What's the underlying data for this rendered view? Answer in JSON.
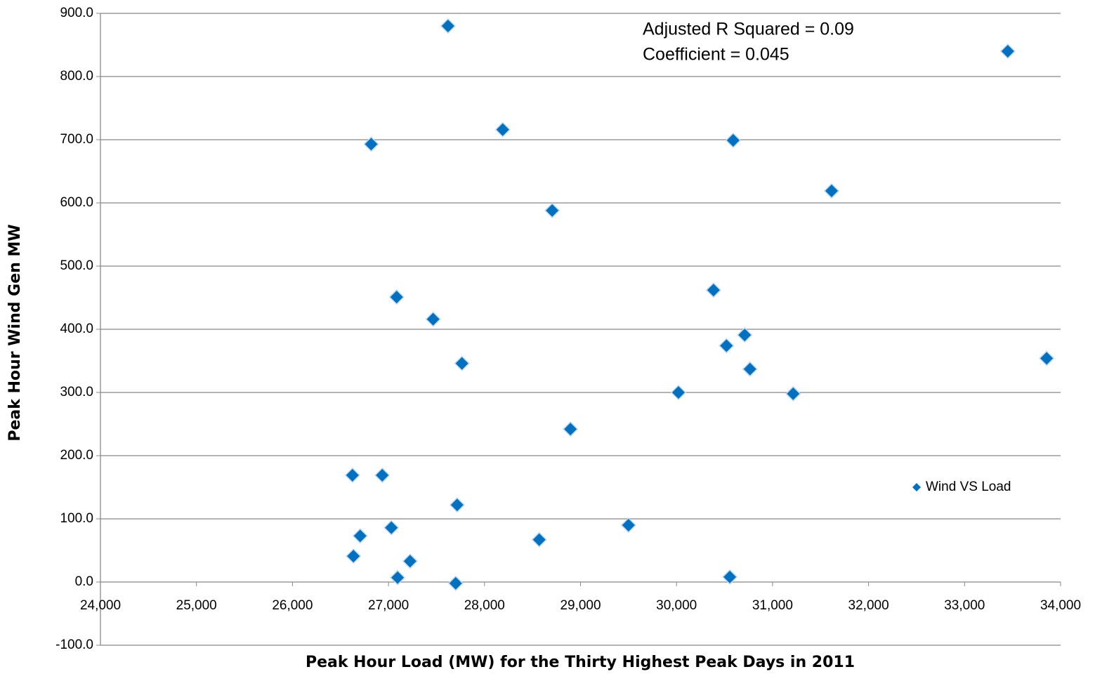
{
  "chart_data": {
    "type": "scatter",
    "x_label": "Peak Hour Load (MW) for the Thirty Highest Peak Days in 2011",
    "y_label": "Peak Hour Wind Gen MW",
    "annotations": [
      "Adjusted R Squared = 0.09",
      "Coefficient = 0.045"
    ],
    "legend": "right",
    "grid": true,
    "xlim": [
      24000,
      34000
    ],
    "ylim": [
      -100,
      900
    ],
    "xticks": [
      {
        "value": 24000,
        "label": "24,000"
      },
      {
        "value": 25000,
        "label": "25,000"
      },
      {
        "value": 26000,
        "label": "26,000"
      },
      {
        "value": 27000,
        "label": "27,000"
      },
      {
        "value": 28000,
        "label": "28,000"
      },
      {
        "value": 29000,
        "label": "29,000"
      },
      {
        "value": 30000,
        "label": "30,000"
      },
      {
        "value": 31000,
        "label": "31,000"
      },
      {
        "value": 32000,
        "label": "32,000"
      },
      {
        "value": 33000,
        "label": "33,000"
      },
      {
        "value": 34000,
        "label": "34,000"
      }
    ],
    "yticks": [
      {
        "value": -100,
        "label": "-100.0"
      },
      {
        "value": 0,
        "label": "0.0"
      },
      {
        "value": 100,
        "label": "100.0"
      },
      {
        "value": 200,
        "label": "200.0"
      },
      {
        "value": 300,
        "label": "300.0"
      },
      {
        "value": 400,
        "label": "400.0"
      },
      {
        "value": 500,
        "label": "500.0"
      },
      {
        "value": 600,
        "label": "600.0"
      },
      {
        "value": 700,
        "label": "700.0"
      },
      {
        "value": 800,
        "label": "800.0"
      },
      {
        "value": 900,
        "label": "900.0"
      }
    ],
    "series": [
      {
        "name": "Wind VS Load",
        "color": "#0070c0",
        "x": [
          27620,
          33450,
          28190,
          26820,
          30590,
          31615,
          28705,
          27085,
          27465,
          30385,
          30710,
          30520,
          30765,
          27765,
          33855,
          30020,
          31215,
          28895,
          26625,
          26935,
          27715,
          27030,
          26705,
          29500,
          28570,
          26635,
          27225,
          27095,
          27700,
          30555
        ],
        "values": [
          880,
          840,
          716,
          693,
          699,
          619,
          588,
          451,
          416,
          462,
          391,
          374,
          337,
          346,
          354,
          300,
          298,
          242,
          169,
          169,
          122,
          86,
          73,
          90,
          67,
          41,
          33,
          7,
          -2,
          8
        ]
      }
    ]
  }
}
